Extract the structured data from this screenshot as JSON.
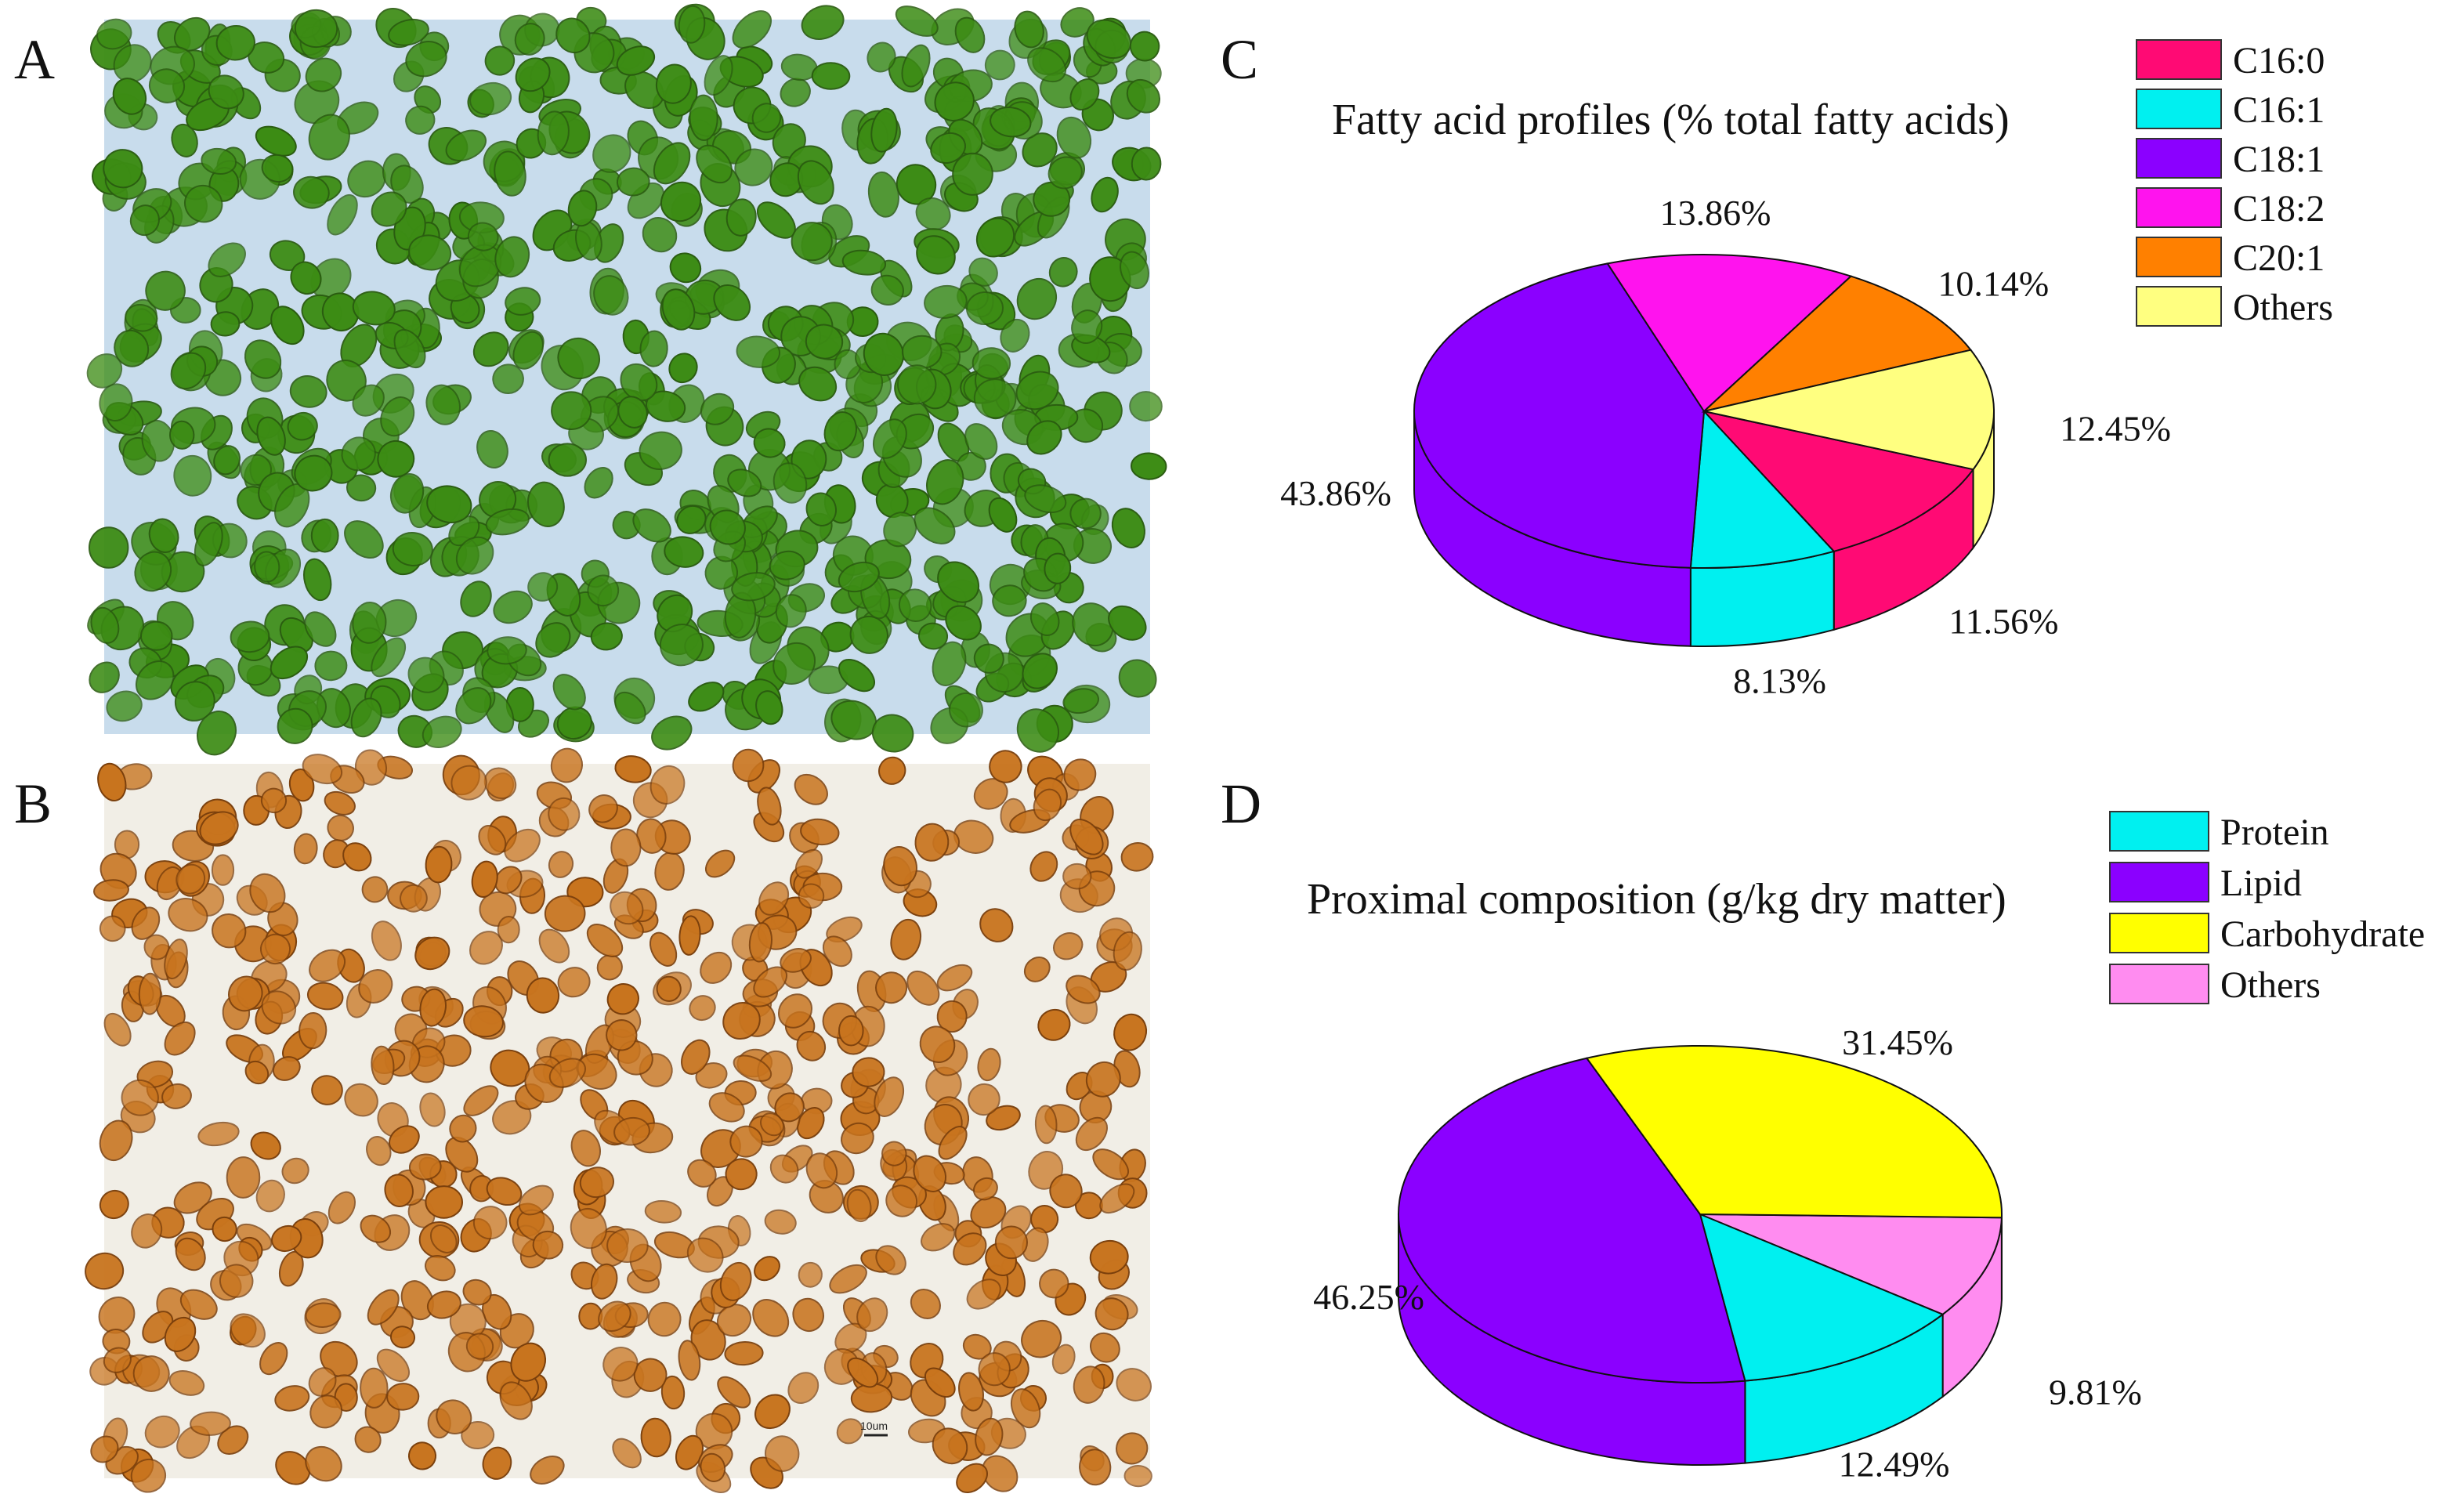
{
  "panels": {
    "a": {
      "letter": "A"
    },
    "b": {
      "letter": "B",
      "scale_bar": "10um"
    },
    "c": {
      "letter": "C"
    },
    "d": {
      "letter": "D"
    }
  },
  "colors": {
    "C16:0": "#ff0a74",
    "C16:1": "#00f0f0",
    "C18:1": "#8b00ff",
    "C18:2": "#ff13ee",
    "C20:1": "#ff8000",
    "Others_fa": "#ffff80",
    "Protein": "#00f0f0",
    "Lipid": "#8b00ff",
    "Carbohydrate": "#ffff00",
    "Others_pc": "#ff8cf0",
    "green_cell": "#3c8c14",
    "orange_cell": "#c8741e"
  },
  "chart_data": [
    {
      "type": "pie",
      "title": "Fatty acid profiles (% total fatty acids)",
      "legend": [
        "C16:0",
        "C16:1",
        "C18:1",
        "C18:2",
        "C20:1",
        "Others"
      ],
      "slices": [
        {
          "name": "C16:0",
          "value": 11.56,
          "label": "11.56%",
          "color": "#ff0a74"
        },
        {
          "name": "C16:1",
          "value": 8.13,
          "label": "8.13%",
          "color": "#00f0f0"
        },
        {
          "name": "C18:1",
          "value": 43.86,
          "label": "43.86%",
          "color": "#8b00ff"
        },
        {
          "name": "C18:2",
          "value": 13.86,
          "label": "13.86%",
          "color": "#ff13ee"
        },
        {
          "name": "C20:1",
          "value": 10.14,
          "label": "10.14%",
          "color": "#ff8000"
        },
        {
          "name": "Others",
          "value": 12.45,
          "label": "12.45%",
          "color": "#ffff80"
        }
      ]
    },
    {
      "type": "pie",
      "title": "Proximal composition (g/kg dry matter)",
      "legend": [
        "Protein",
        "Lipid",
        "Carbohydrate",
        "Others"
      ],
      "slices": [
        {
          "name": "Protein",
          "value": 12.49,
          "label": "12.49%",
          "color": "#00f0f0"
        },
        {
          "name": "Lipid",
          "value": 46.25,
          "label": "46.25%",
          "color": "#8b00ff"
        },
        {
          "name": "Carbohydrate",
          "value": 31.45,
          "label": "31.45%",
          "color": "#ffff00"
        },
        {
          "name": "Others",
          "value": 9.81,
          "label": "9.81%",
          "color": "#ff8cf0"
        }
      ]
    }
  ]
}
